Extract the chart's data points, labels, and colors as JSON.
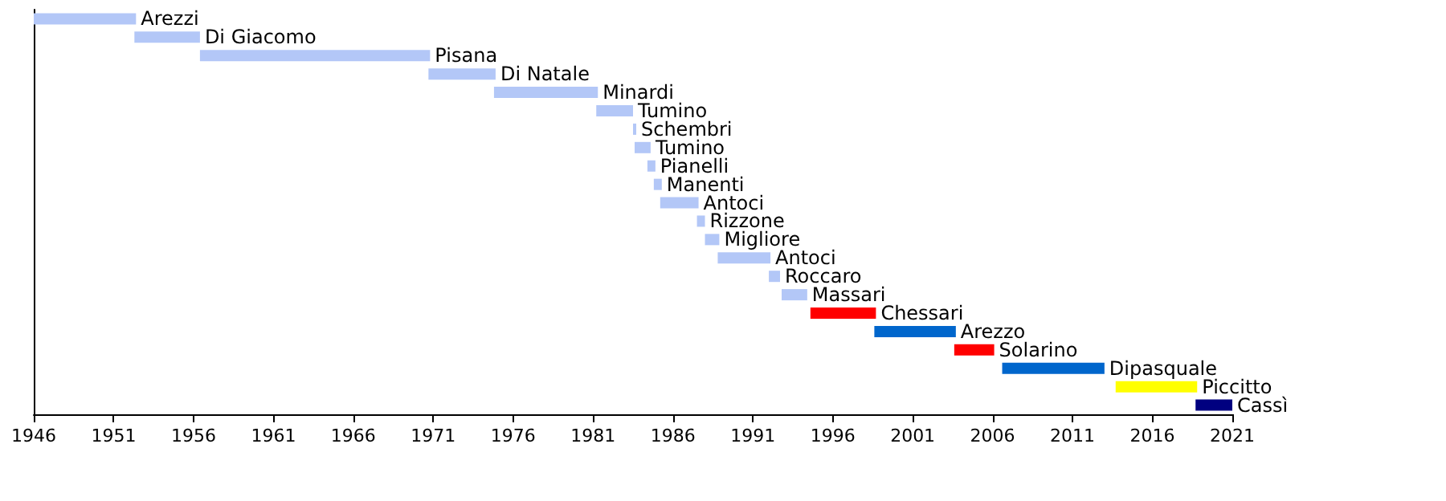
{
  "chart_data": {
    "type": "bar",
    "orientation": "horizontal",
    "categories": [
      "Arezzi",
      "Di Giacomo",
      "Pisana",
      "Di Natale",
      "Minardi",
      "Tumino",
      "Schembri",
      "Tumino",
      "Pianelli",
      "Manenti",
      "Antoci",
      "Rizzone",
      "Migliore",
      "Antoci",
      "Roccaro",
      "Massari",
      "Chessari",
      "Arezzo",
      "Solarino",
      "Dipasquale",
      "Piccitto",
      "Cassì"
    ],
    "base": [
      1946,
      1952.3,
      1956.4,
      1970.7,
      1974.8,
      1981.2,
      1983.5,
      1983.6,
      1984.4,
      1984.8,
      1985.2,
      1987.5,
      1988.0,
      1988.8,
      1992.0,
      1992.8,
      1994.6,
      1998.6,
      2003.6,
      2006.6,
      2013.7,
      2018.7
    ],
    "values": [
      6.4,
      4.1,
      14.4,
      4.2,
      6.5,
      2.3,
      0.2,
      1.0,
      0.5,
      0.5,
      2.4,
      0.5,
      0.9,
      3.3,
      0.7,
      1.6,
      4.1,
      5.1,
      2.5,
      6.4,
      5.1,
      2.3
    ],
    "colors": [
      "#b3c7f7",
      "#b3c7f7",
      "#b3c7f7",
      "#b3c7f7",
      "#b3c7f7",
      "#b3c7f7",
      "#b3c7f7",
      "#b3c7f7",
      "#b3c7f7",
      "#b3c7f7",
      "#b3c7f7",
      "#b3c7f7",
      "#b3c7f7",
      "#b3c7f7",
      "#b3c7f7",
      "#b3c7f7",
      "#ff0000",
      "#0066cc",
      "#ff0000",
      "#0066cc",
      "#ffff00",
      "#000080"
    ],
    "xlim": [
      1946,
      2021
    ],
    "xticks": [
      1946,
      1951,
      1956,
      1961,
      1966,
      1971,
      1976,
      1981,
      1986,
      1991,
      1996,
      2001,
      2006,
      2011,
      2016,
      2021
    ],
    "tick_labels": "x",
    "grid": false
  }
}
